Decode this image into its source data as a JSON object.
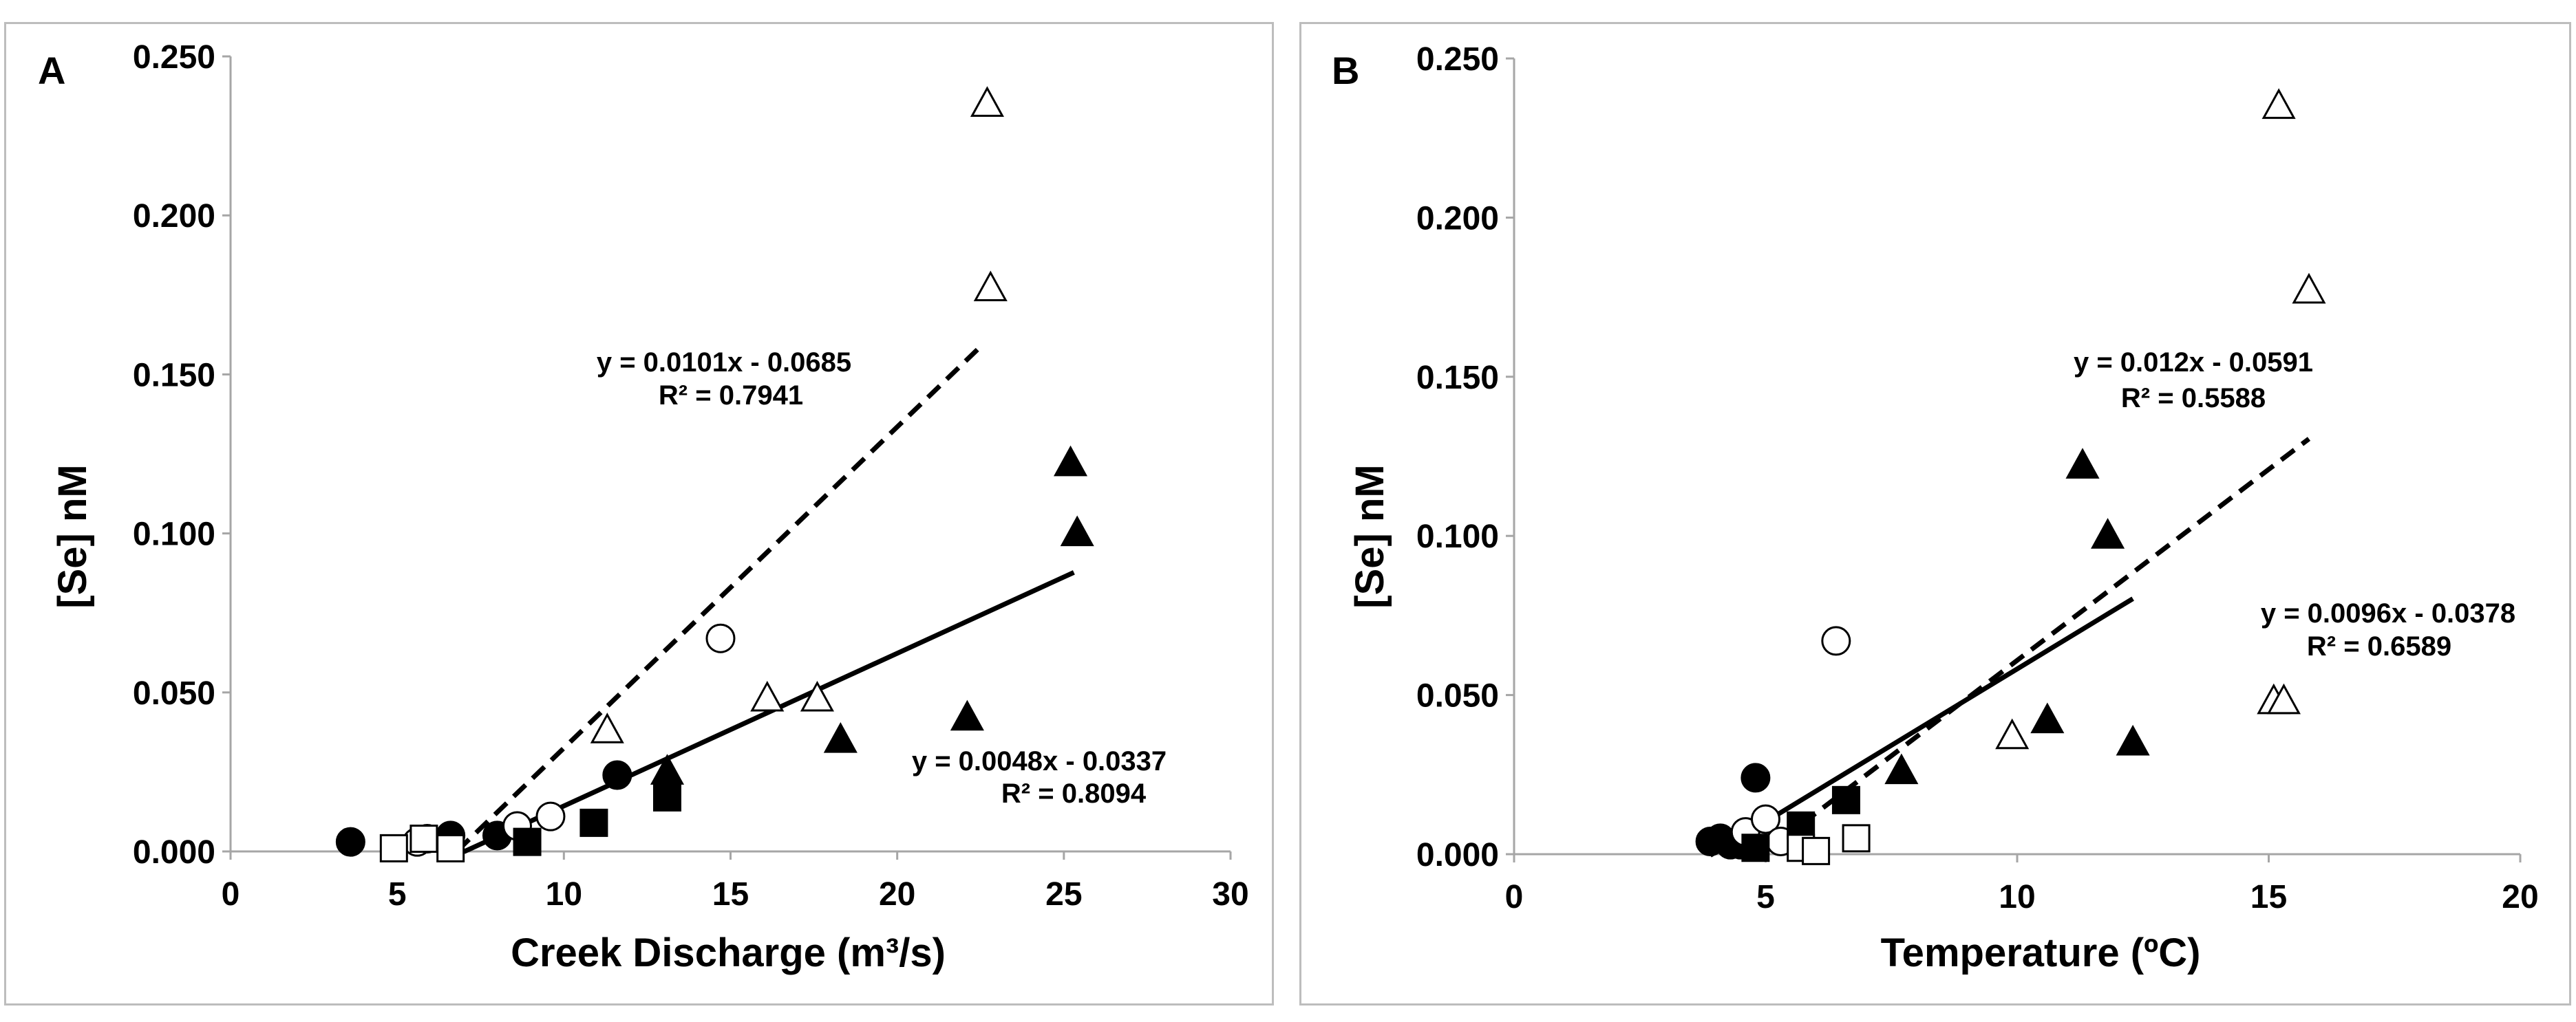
{
  "chart_data": [
    {
      "type": "scatter",
      "panel_label": "A",
      "xlabel": "Creek Discharge (m³/s)",
      "ylabel": "[Se] nM",
      "xlim": [
        0,
        30
      ],
      "ylim": [
        0,
        0.25
      ],
      "xticks": [
        "0",
        "5",
        "10",
        "15",
        "20",
        "25",
        "30"
      ],
      "yticks": [
        "0.000",
        "0.050",
        "0.100",
        "0.150",
        "0.200",
        "0.250"
      ],
      "series": [
        {
          "name": "filled-circle",
          "marker": "circle",
          "filled": true,
          "points": [
            [
              3.6,
              0.003
            ],
            [
              5.9,
              0.004
            ],
            [
              6.6,
              0.005
            ],
            [
              8.0,
              0.005
            ],
            [
              11.6,
              0.024
            ]
          ]
        },
        {
          "name": "open-circle",
          "marker": "circle",
          "filled": false,
          "points": [
            [
              5.6,
              0.003
            ],
            [
              8.6,
              0.008
            ],
            [
              9.6,
              0.011
            ],
            [
              14.7,
              0.067
            ]
          ]
        },
        {
          "name": "filled-square",
          "marker": "square",
          "filled": true,
          "points": [
            [
              8.9,
              0.003
            ],
            [
              10.9,
              0.009
            ],
            [
              13.1,
              0.017
            ]
          ]
        },
        {
          "name": "open-square",
          "marker": "square",
          "filled": false,
          "points": [
            [
              4.9,
              0.001
            ],
            [
              5.8,
              0.004
            ],
            [
              6.6,
              0.001
            ]
          ]
        },
        {
          "name": "filled-triangle",
          "marker": "triangle",
          "filled": true,
          "points": [
            [
              13.1,
              0.025
            ],
            [
              18.3,
              0.035
            ],
            [
              22.1,
              0.042
            ],
            [
              25.2,
              0.122
            ],
            [
              25.4,
              0.1
            ]
          ]
        },
        {
          "name": "open-triangle",
          "marker": "triangle",
          "filled": false,
          "points": [
            [
              11.3,
              0.038
            ],
            [
              16.1,
              0.048
            ],
            [
              17.6,
              0.048
            ],
            [
              22.7,
              0.235
            ],
            [
              22.8,
              0.177
            ]
          ]
        }
      ],
      "trendlines": [
        {
          "style": "dashed",
          "x_range": [
            6.8,
            22.6
          ],
          "slope": 0.0101,
          "intercept": -0.0685,
          "equation": "y = 0.0101x - 0.0685",
          "r2": "R² = 0.7941"
        },
        {
          "style": "solid",
          "x_range": [
            7.0,
            25.3
          ],
          "slope": 0.0048,
          "intercept": -0.0337,
          "equation": "y = 0.0048x - 0.0337",
          "r2": "R² = 0.8094"
        }
      ]
    },
    {
      "type": "scatter",
      "panel_label": "B",
      "xlabel": "Temperature (ºC)",
      "ylabel": "[Se] nM",
      "xlim": [
        0,
        20
      ],
      "ylim": [
        0,
        0.25
      ],
      "xticks": [
        "0",
        "5",
        "10",
        "15",
        "20"
      ],
      "yticks": [
        "0.000",
        "0.050",
        "0.100",
        "0.150",
        "0.200",
        "0.250"
      ],
      "series": [
        {
          "name": "filled-circle",
          "marker": "circle",
          "filled": true,
          "points": [
            [
              3.9,
              0.004
            ],
            [
              4.1,
              0.005
            ],
            [
              4.3,
              0.003
            ],
            [
              4.5,
              0.003
            ],
            [
              4.8,
              0.024
            ]
          ]
        },
        {
          "name": "open-circle",
          "marker": "circle",
          "filled": false,
          "points": [
            [
              4.6,
              0.007
            ],
            [
              5.0,
              0.011
            ],
            [
              5.3,
              0.004
            ],
            [
              6.4,
              0.067
            ]
          ]
        },
        {
          "name": "filled-square",
          "marker": "square",
          "filled": true,
          "points": [
            [
              4.8,
              0.002
            ],
            [
              5.7,
              0.009
            ],
            [
              6.6,
              0.017
            ]
          ]
        },
        {
          "name": "open-square",
          "marker": "square",
          "filled": false,
          "points": [
            [
              5.7,
              0.002
            ],
            [
              6.0,
              0.001
            ],
            [
              6.8,
              0.005
            ]
          ]
        },
        {
          "name": "filled-triangle",
          "marker": "triangle",
          "filled": true,
          "points": [
            [
              7.7,
              0.026
            ],
            [
              10.6,
              0.042
            ],
            [
              11.3,
              0.122
            ],
            [
              11.8,
              0.1
            ],
            [
              12.3,
              0.035
            ]
          ]
        },
        {
          "name": "open-triangle",
          "marker": "triangle",
          "filled": false,
          "points": [
            [
              9.9,
              0.037
            ],
            [
              15.1,
              0.048
            ],
            [
              15.2,
              0.235
            ],
            [
              15.3,
              0.048
            ],
            [
              15.8,
              0.177
            ]
          ]
        }
      ],
      "trendlines": [
        {
          "style": "dashed",
          "x_range": [
            4.9,
            15.8
          ],
          "slope": 0.012,
          "intercept": -0.0591,
          "equation": "y = 0.012x - 0.0591",
          "r2": "R² = 0.5588"
        },
        {
          "style": "solid",
          "x_range": [
            3.9,
            12.3
          ],
          "slope": 0.0096,
          "intercept": -0.0378,
          "equation": "y = 0.0096x - 0.0378",
          "r2": "R² = 0.6589"
        }
      ]
    }
  ]
}
